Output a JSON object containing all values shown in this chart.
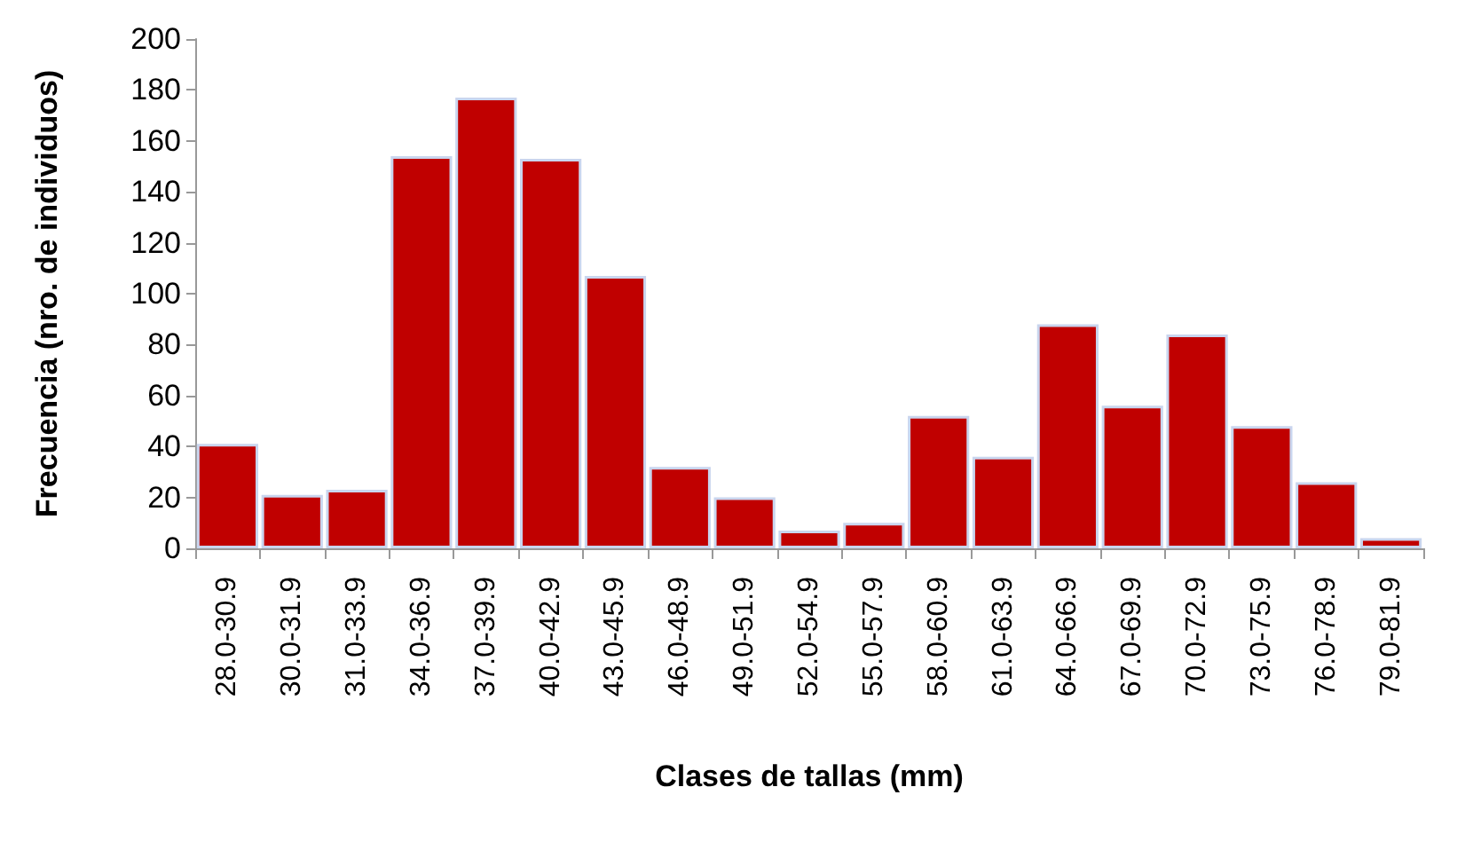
{
  "chart_data": {
    "type": "bar",
    "xlabel": "Clases de tallas (mm)",
    "ylabel": "Frecuencia (nro. de individuos)",
    "categories": [
      "28.0-30.9",
      "30.0-31.9",
      "31.0-33.9",
      "34.0-36.9",
      "37.0-39.9",
      "40.0-42.9",
      "43.0-45.9",
      "46.0-48.9",
      "49.0-51.9",
      "52.0-54.9",
      "55.0-57.9",
      "58.0-60.9",
      "61.0-63.9",
      "64.0-66.9",
      "67.0-69.9",
      "70.0-72.9",
      "73.0-75.9",
      "76.0-78.9",
      "79.0-81.9"
    ],
    "values": [
      41,
      21,
      23,
      154,
      177,
      153,
      107,
      32,
      20,
      7,
      10,
      52,
      36,
      88,
      56,
      84,
      48,
      26,
      4
    ],
    "color": "#c00000",
    "ylim": [
      0,
      200
    ],
    "yticks": [
      0,
      20,
      40,
      60,
      80,
      100,
      120,
      140,
      160,
      180,
      200
    ],
    "grid": false
  }
}
